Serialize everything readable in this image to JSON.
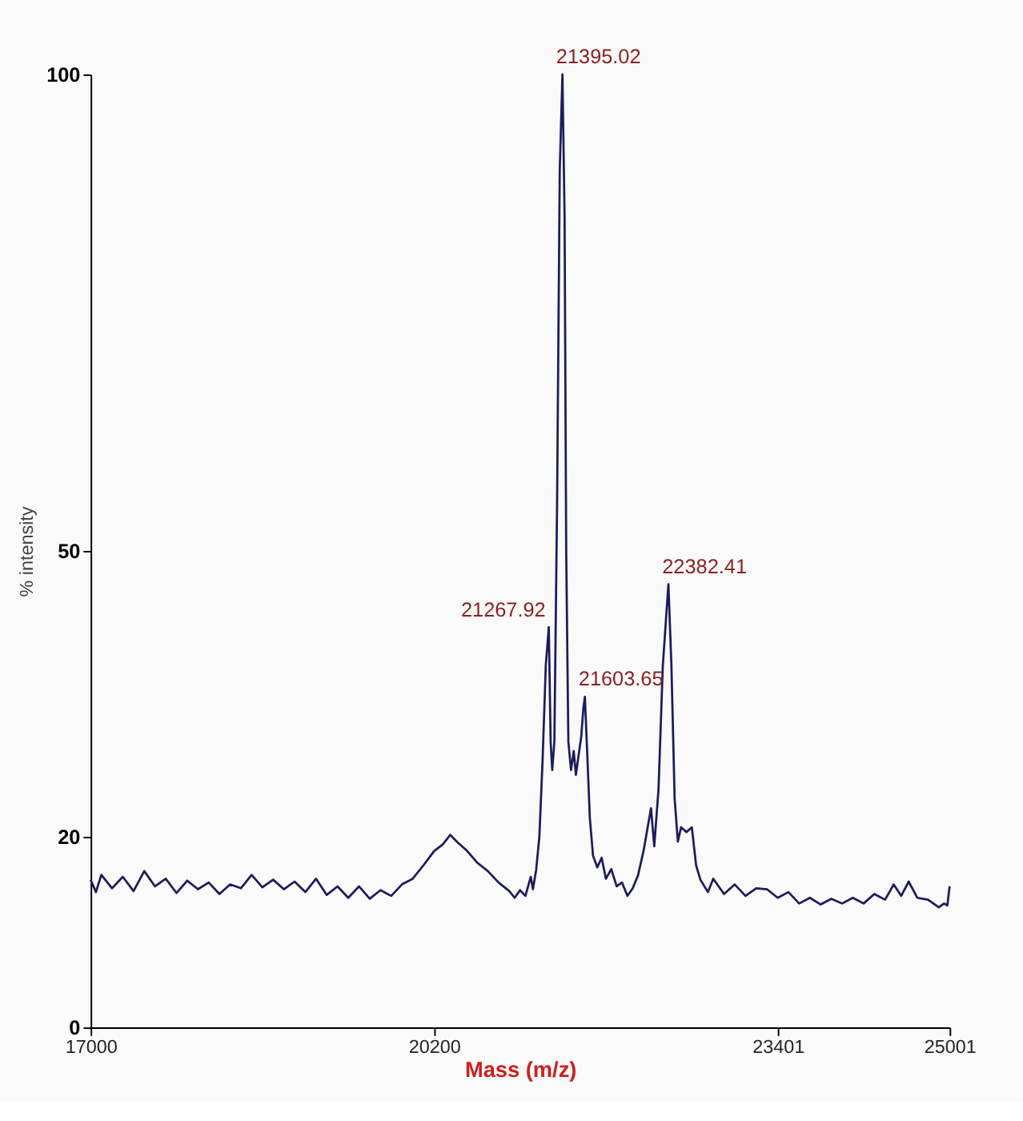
{
  "chart_data": {
    "type": "line",
    "xlabel": "Mass (m/z)",
    "ylabel": "% intensity",
    "xlim": [
      17000,
      25001
    ],
    "xticks": [
      17000,
      20200,
      23401,
      25001
    ],
    "ylim": [
      0,
      100
    ],
    "yticks": [
      0,
      20,
      50,
      100
    ],
    "grid": false,
    "marker": "none",
    "line_style": "solid",
    "series": [
      {
        "color": "#1c1c5c",
        "x": [
          17000,
          17050,
          17100,
          17200,
          17300,
          17400,
          17500,
          17600,
          17700,
          17800,
          17900,
          18000,
          18100,
          18200,
          18300,
          18400,
          18500,
          18600,
          18700,
          18800,
          18900,
          19000,
          19100,
          19200,
          19300,
          19400,
          19500,
          19600,
          19700,
          19800,
          19900,
          20000,
          20100,
          20200,
          20280,
          20350,
          20420,
          20500,
          20600,
          20700,
          20800,
          20900,
          20950,
          21000,
          21050,
          21100,
          21120,
          21150,
          21180,
          21210,
          21240,
          21268,
          21285,
          21300,
          21320,
          21345,
          21370,
          21395,
          21415,
          21430,
          21450,
          21475,
          21500,
          21520,
          21545,
          21570,
          21590,
          21604,
          21625,
          21650,
          21680,
          21720,
          21760,
          21800,
          21850,
          21900,
          21950,
          22000,
          22050,
          22100,
          22150,
          22220,
          22250,
          22290,
          22330,
          22382,
          22410,
          22440,
          22470,
          22500,
          22550,
          22600,
          22640,
          22680,
          22750,
          22800,
          22900,
          23000,
          23100,
          23200,
          23300,
          23400,
          23500,
          23600,
          23700,
          23800,
          23900,
          24000,
          24100,
          24200,
          24300,
          24400,
          24480,
          24550,
          24620,
          24700,
          24800,
          24900,
          24950,
          24980,
          25001
        ],
        "values": [
          15.5,
          14.2,
          16.0,
          14.6,
          15.8,
          14.3,
          16.4,
          14.8,
          15.6,
          14.1,
          15.4,
          14.5,
          15.2,
          14.0,
          15.0,
          14.6,
          16.0,
          14.7,
          15.5,
          14.5,
          15.3,
          14.2,
          15.6,
          13.9,
          14.8,
          13.6,
          14.8,
          13.5,
          14.4,
          13.8,
          15.0,
          15.6,
          17.0,
          18.5,
          19.2,
          20.2,
          19.4,
          18.6,
          17.3,
          16.4,
          15.2,
          14.3,
          13.6,
          14.4,
          13.8,
          15.8,
          14.5,
          16.5,
          20.0,
          28.0,
          38.0,
          42.0,
          30.0,
          27.0,
          30.0,
          55.0,
          90.0,
          100.0,
          85.0,
          50.0,
          30.0,
          27.0,
          29.0,
          26.5,
          28.5,
          30.5,
          33.5,
          34.7,
          29.0,
          22.0,
          18.0,
          16.8,
          17.8,
          15.6,
          16.6,
          14.8,
          15.2,
          13.8,
          14.6,
          16.0,
          18.5,
          23.0,
          19.0,
          25.0,
          38.0,
          46.5,
          38.0,
          24.0,
          19.5,
          21.0,
          20.5,
          21.0,
          17.0,
          15.5,
          14.2,
          15.6,
          14.0,
          15.0,
          13.8,
          14.6,
          14.5,
          13.6,
          14.2,
          13.0,
          13.6,
          12.9,
          13.5,
          13.0,
          13.6,
          13.0,
          14.0,
          13.4,
          15.0,
          13.8,
          15.3,
          13.6,
          13.4,
          12.6,
          13.0,
          12.8,
          14.8
        ]
      }
    ],
    "annotations": [
      {
        "text": "21395.02",
        "x": 21395.02,
        "y": 100
      },
      {
        "text": "21267.92",
        "x": 21267.92,
        "y": 42
      },
      {
        "text": "21603.65",
        "x": 21603.65,
        "y": 34.7
      },
      {
        "text": "22382.41",
        "x": 22382.41,
        "y": 46.5
      }
    ]
  }
}
